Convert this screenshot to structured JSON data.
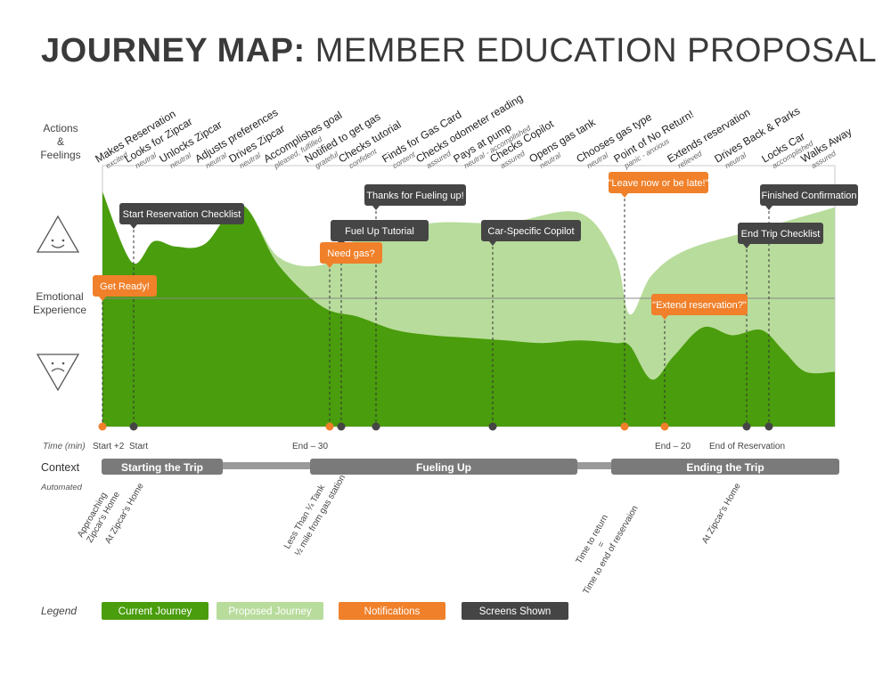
{
  "title": {
    "bold": "JOURNEY MAP:",
    "light": "MEMBER EDUCATION PROPOSAL"
  },
  "row_labels": {
    "actions": [
      "Actions",
      "&",
      "Feelings"
    ],
    "emotional": [
      "Emotional",
      "Experience"
    ],
    "time": "Time (min)",
    "context": "Context",
    "automated": "Automated",
    "legend": "Legend"
  },
  "actions": [
    {
      "action": "Makes Reservation",
      "feeling": "excited"
    },
    {
      "action": "Looks for Zipcar",
      "feeling": "neutral"
    },
    {
      "action": "Unlocks Zipcar",
      "feeling": "neutral"
    },
    {
      "action": "Adjusts preferences",
      "feeling": "neutral"
    },
    {
      "action": "Drives Zipcar",
      "feeling": "neutral"
    },
    {
      "action": "Accomplishes goal",
      "feeling": "pleased, fulfilled"
    },
    {
      "action": "Notified to get gas",
      "feeling": "grateful"
    },
    {
      "action": "Checks tutorial",
      "feeling": "confident"
    },
    {
      "action": "Finds for Gas Card",
      "feeling": "content"
    },
    {
      "action": "Checks odometer reading",
      "feeling": "assured"
    },
    {
      "action": "Pays at pump",
      "feeling": "neutral - accomplished"
    },
    {
      "action": "Checks Copilot",
      "feeling": "assured"
    },
    {
      "action": "Opens gas tank",
      "feeling": "neutral"
    },
    {
      "action": "Chooses gas type",
      "feeling": "neutral"
    },
    {
      "action": "Point of No Return!",
      "feeling": "panic - anxious"
    },
    {
      "action": "Extends reservation",
      "feeling": "relieved"
    },
    {
      "action": "Drives Back & Parks",
      "feeling": "neutral"
    },
    {
      "action": "Locks Car",
      "feeling": "accomplished"
    },
    {
      "action": "Walks Away",
      "feeling": "assured"
    }
  ],
  "screens": [
    "Start Reservation Checklist",
    "Thanks for Fueling up!",
    "Fuel Up Tutorial",
    "Car-Specific Copilot",
    "Finished Confirmation",
    "End Trip Checklist"
  ],
  "notifications": [
    "Get Ready!",
    "Need gas?",
    "\"Leave now or be late!\"",
    "\"Extend reservation?\""
  ],
  "time_labels": [
    "Start +2",
    "Start",
    "End – 30",
    "End – 20",
    "End of Reservation"
  ],
  "context": [
    "Starting the Trip",
    "Fueling Up",
    "Ending the Trip"
  ],
  "automated": [
    [
      "Approaching",
      "Zipcar's Home"
    ],
    [
      "At Zipcar's Home"
    ],
    [
      "Less Than ¼ Tank"
    ],
    [
      "½ mile from gas station"
    ],
    [
      "Time to return",
      "=",
      "Time to end of reservaion"
    ],
    [
      "At Zipcar's Home"
    ]
  ],
  "legend": [
    "Current Journey",
    "Proposed Journey",
    "Notifications",
    "Screens Shown"
  ],
  "colors": {
    "current": "#4a9d0d",
    "proposed": "#b8dc9c",
    "notification": "#f0802a",
    "screen": "#454545",
    "context_bar": "#7a7a7a"
  },
  "chart_data": {
    "type": "area",
    "y_scale": "emotion, 0 = most negative, 100 = most positive, 50 = neutral",
    "series": [
      {
        "name": "Current Journey",
        "points": [
          [
            0,
            90
          ],
          [
            4,
            63
          ],
          [
            7,
            71
          ],
          [
            10,
            69
          ],
          [
            14,
            70
          ],
          [
            19,
            85
          ],
          [
            24,
            62
          ],
          [
            30,
            46
          ],
          [
            35,
            42
          ],
          [
            40,
            37
          ],
          [
            45,
            35
          ],
          [
            50,
            34
          ],
          [
            55,
            33
          ],
          [
            60,
            32
          ],
          [
            65,
            33
          ],
          [
            70,
            32
          ],
          [
            72,
            31
          ],
          [
            75,
            18
          ],
          [
            78,
            27
          ],
          [
            82,
            38
          ],
          [
            86,
            35
          ],
          [
            90,
            37
          ],
          [
            93,
            29
          ],
          [
            96,
            21
          ],
          [
            100,
            21
          ]
        ]
      },
      {
        "name": "Proposed Journey",
        "points": [
          [
            0,
            90
          ],
          [
            4,
            63
          ],
          [
            7,
            71
          ],
          [
            10,
            69
          ],
          [
            14,
            70
          ],
          [
            19,
            85
          ],
          [
            24,
            65
          ],
          [
            30,
            62
          ],
          [
            35,
            72
          ],
          [
            45,
            78
          ],
          [
            55,
            78
          ],
          [
            65,
            82
          ],
          [
            70,
            65
          ],
          [
            72,
            43
          ],
          [
            75,
            58
          ],
          [
            80,
            68
          ],
          [
            90,
            76
          ],
          [
            100,
            84
          ]
        ]
      }
    ]
  }
}
